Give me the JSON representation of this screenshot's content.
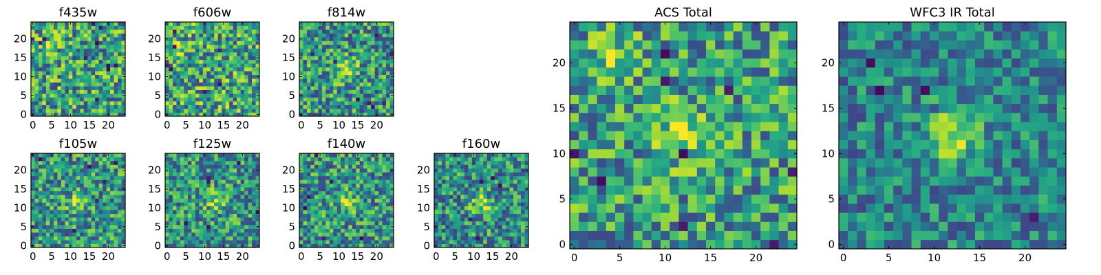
{
  "chart_data": [
    {
      "type": "heatmap",
      "title": "f435w",
      "grid_size": 25,
      "xticks": [
        0,
        5,
        10,
        15,
        20
      ],
      "yticks": [
        0,
        5,
        10,
        15,
        20
      ],
      "colormap": "viridis",
      "hotspots": [
        {
          "x": 5,
          "y": 19,
          "strength": 0.12
        }
      ],
      "seed": 11,
      "noise": 0.34,
      "base": 0.6,
      "dark_cells": 10,
      "values": null
    },
    {
      "type": "heatmap",
      "title": "f606w",
      "grid_size": 25,
      "xticks": [
        0,
        5,
        10,
        15,
        20
      ],
      "yticks": [
        0,
        5,
        10,
        15,
        20
      ],
      "colormap": "viridis",
      "hotspots": [
        {
          "x": 3,
          "y": 17,
          "strength": 0.1
        }
      ],
      "seed": 23,
      "noise": 0.34,
      "base": 0.62,
      "dark_cells": 7,
      "values": null
    },
    {
      "type": "heatmap",
      "title": "f814w",
      "grid_size": 25,
      "xticks": [
        0,
        5,
        10,
        15,
        20
      ],
      "yticks": [
        0,
        5,
        10,
        15,
        20
      ],
      "colormap": "viridis",
      "hotspots": [
        {
          "x": 12,
          "y": 12,
          "strength": 0.35
        }
      ],
      "seed": 37,
      "noise": 0.32,
      "base": 0.55,
      "dark_cells": 8,
      "values": null
    },
    {
      "type": "heatmap",
      "title": "f105w",
      "grid_size": 25,
      "xticks": [
        0,
        5,
        10,
        15,
        20
      ],
      "yticks": [
        0,
        5,
        10,
        15,
        20
      ],
      "colormap": "viridis",
      "hotspots": [
        {
          "x": 12,
          "y": 12,
          "strength": 0.25
        }
      ],
      "seed": 41,
      "noise": 0.3,
      "base": 0.55,
      "dark_cells": 6,
      "values": null
    },
    {
      "type": "heatmap",
      "title": "f125w",
      "grid_size": 25,
      "xticks": [
        0,
        5,
        10,
        15,
        20
      ],
      "yticks": [
        0,
        5,
        10,
        15,
        20
      ],
      "colormap": "viridis",
      "hotspots": [
        {
          "x": 13,
          "y": 12,
          "strength": 0.25
        }
      ],
      "seed": 53,
      "noise": 0.3,
      "base": 0.55,
      "dark_cells": 6,
      "values": null
    },
    {
      "type": "heatmap",
      "title": "f140w",
      "grid_size": 25,
      "xticks": [
        0,
        5,
        10,
        15,
        20
      ],
      "yticks": [
        0,
        5,
        10,
        15,
        20
      ],
      "colormap": "viridis",
      "hotspots": [
        {
          "x": 12,
          "y": 12,
          "strength": 0.25
        }
      ],
      "seed": 67,
      "noise": 0.3,
      "base": 0.55,
      "dark_cells": 6,
      "values": null
    },
    {
      "type": "heatmap",
      "title": "f160w",
      "grid_size": 25,
      "xticks": [
        0,
        5,
        10,
        15,
        20
      ],
      "yticks": [
        0,
        5,
        10,
        15,
        20
      ],
      "colormap": "viridis",
      "hotspots": [
        {
          "x": 12,
          "y": 11,
          "strength": 0.35
        }
      ],
      "seed": 79,
      "noise": 0.3,
      "base": 0.52,
      "dark_cells": 5,
      "values": null
    },
    {
      "type": "heatmap",
      "title": "ACS Total",
      "grid_size": 25,
      "xticks": [
        0,
        5,
        10,
        15,
        20
      ],
      "yticks": [
        0,
        5,
        10,
        15,
        20
      ],
      "colormap": "viridis",
      "hotspots": [
        {
          "x": 12,
          "y": 12,
          "strength": 0.3
        },
        {
          "x": 5,
          "y": 21,
          "strength": 0.2
        }
      ],
      "seed": 97,
      "noise": 0.3,
      "base": 0.58,
      "dark_cells": 9,
      "values": null
    },
    {
      "type": "heatmap",
      "title": "WFC3 IR Total",
      "grid_size": 25,
      "xticks": [
        0,
        5,
        10,
        15,
        20
      ],
      "yticks": [
        0,
        5,
        10,
        15,
        20
      ],
      "colormap": "viridis",
      "hotspots": [
        {
          "x": 12,
          "y": 12,
          "strength": 0.4
        }
      ],
      "seed": 113,
      "noise": 0.22,
      "base": 0.48,
      "dark_cells": 4,
      "values": null
    }
  ]
}
